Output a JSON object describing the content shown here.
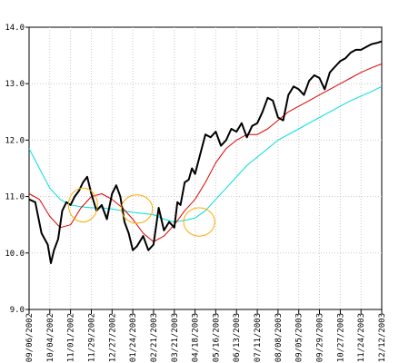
{
  "chart_data": {
    "type": "line",
    "title": "",
    "xlabel": "",
    "ylabel": "",
    "ylim": [
      9.0,
      14.0
    ],
    "y_ticks": [
      9.0,
      10.0,
      11.0,
      12.0,
      13.0,
      14.0
    ],
    "y_tick_labels": [
      "9.0",
      "10.0",
      "11.0",
      "12.0",
      "13.0",
      "14.0"
    ],
    "x_tick_labels": [
      "09/06/2002",
      "10/04/2002",
      "11/01/2002",
      "11/29/2002",
      "12/27/2002",
      "01/24/2003",
      "02/21/2003",
      "03/21/2003",
      "04/18/2003",
      "05/16/2003",
      "06/13/2003",
      "07/11/2003",
      "08/08/2003",
      "09/05/2003",
      "09/29/2003",
      "10/27/2003",
      "11/24/2003",
      "12/12/2003"
    ],
    "grid": true,
    "legend": "none",
    "series": [
      {
        "key": "price",
        "color": "#000000",
        "width": 2,
        "x": [
          0,
          0.3,
          0.6,
          0.9,
          1.05,
          1.2,
          1.4,
          1.6,
          1.8,
          2.0,
          2.2,
          2.4,
          2.6,
          2.8,
          3.0,
          3.25,
          3.5,
          3.75,
          4.0,
          4.2,
          4.4,
          4.6,
          4.8,
          5.0,
          5.2,
          5.5,
          5.75,
          6.0,
          6.25,
          6.5,
          6.75,
          7.0,
          7.15,
          7.3,
          7.5,
          7.7,
          7.85,
          8.0,
          8.25,
          8.5,
          8.75,
          9.0,
          9.25,
          9.5,
          9.75,
          10.0,
          10.25,
          10.5,
          10.75,
          11.0,
          11.25,
          11.5,
          11.75,
          12.0,
          12.25,
          12.5,
          12.75,
          13.0,
          13.25,
          13.5,
          13.75,
          14.0,
          14.25,
          14.5,
          14.75,
          15.0,
          15.25,
          15.5,
          15.75,
          16.0,
          16.25,
          16.5,
          16.75,
          17.0
        ],
        "values": [
          10.95,
          10.9,
          10.35,
          10.15,
          9.82,
          10.05,
          10.25,
          10.75,
          10.9,
          10.85,
          11.0,
          11.1,
          11.25,
          11.35,
          11.05,
          10.75,
          10.85,
          10.6,
          11.05,
          11.2,
          11.0,
          10.55,
          10.35,
          10.05,
          10.12,
          10.3,
          10.05,
          10.15,
          10.8,
          10.4,
          10.55,
          10.45,
          10.9,
          10.85,
          11.25,
          11.3,
          11.5,
          11.4,
          11.75,
          12.1,
          12.05,
          12.15,
          11.9,
          12.0,
          12.2,
          12.15,
          12.3,
          12.05,
          12.25,
          12.3,
          12.5,
          12.75,
          12.7,
          12.4,
          12.35,
          12.8,
          12.95,
          12.9,
          12.8,
          13.05,
          13.15,
          13.1,
          12.9,
          13.2,
          13.3,
          13.4,
          13.45,
          13.55,
          13.6,
          13.6,
          13.65,
          13.7,
          13.72,
          13.75
        ]
      },
      {
        "key": "moving-average-short",
        "color": "#dd0000",
        "width": 1,
        "x": [
          0,
          0.5,
          1.0,
          1.5,
          2.0,
          2.5,
          3.0,
          3.5,
          4.0,
          4.5,
          5.0,
          5.5,
          6.0,
          6.5,
          7.0,
          7.5,
          8.0,
          8.5,
          9.0,
          9.5,
          10.0,
          10.5,
          11.0,
          11.5,
          12.0,
          12.5,
          13.0,
          13.5,
          14.0,
          14.5,
          15.0,
          15.5,
          16.0,
          16.5,
          17.0
        ],
        "values": [
          11.05,
          10.95,
          10.65,
          10.45,
          10.5,
          10.8,
          11.0,
          11.05,
          10.95,
          10.8,
          10.6,
          10.35,
          10.2,
          10.3,
          10.5,
          10.75,
          10.95,
          11.25,
          11.6,
          11.85,
          12.0,
          12.1,
          12.1,
          12.2,
          12.35,
          12.5,
          12.6,
          12.7,
          12.8,
          12.9,
          13.0,
          13.1,
          13.2,
          13.28,
          13.35
        ]
      },
      {
        "key": "moving-average-long",
        "color": "#00dddd",
        "width": 1,
        "x": [
          0,
          0.5,
          1.0,
          1.5,
          2.0,
          2.5,
          3.0,
          3.5,
          4.0,
          4.5,
          5.0,
          5.5,
          6.0,
          6.5,
          7.0,
          7.5,
          8.0,
          8.5,
          9.0,
          9.5,
          10.0,
          10.5,
          11.0,
          11.5,
          12.0,
          12.5,
          13.0,
          13.5,
          14.0,
          14.5,
          15.0,
          15.5,
          16.0,
          16.5,
          17.0
        ],
        "values": [
          11.85,
          11.5,
          11.15,
          10.95,
          10.85,
          10.82,
          10.8,
          10.8,
          10.78,
          10.75,
          10.72,
          10.7,
          10.68,
          10.6,
          10.55,
          10.58,
          10.62,
          10.75,
          10.95,
          11.15,
          11.35,
          11.55,
          11.7,
          11.85,
          12.0,
          12.1,
          12.2,
          12.3,
          12.4,
          12.5,
          12.6,
          12.7,
          12.78,
          12.86,
          12.95
        ]
      }
    ],
    "annotations": [
      {
        "shape": "ellipse",
        "color": "#ffaa00",
        "cx": 2.6,
        "cy": 10.85,
        "rx": 0.7,
        "ry": 0.3
      },
      {
        "shape": "ellipse",
        "color": "#ffaa00",
        "cx": 5.2,
        "cy": 10.78,
        "rx": 0.75,
        "ry": 0.25
      },
      {
        "shape": "ellipse",
        "color": "#ffaa00",
        "cx": 8.2,
        "cy": 10.55,
        "rx": 0.75,
        "ry": 0.25
      }
    ]
  }
}
